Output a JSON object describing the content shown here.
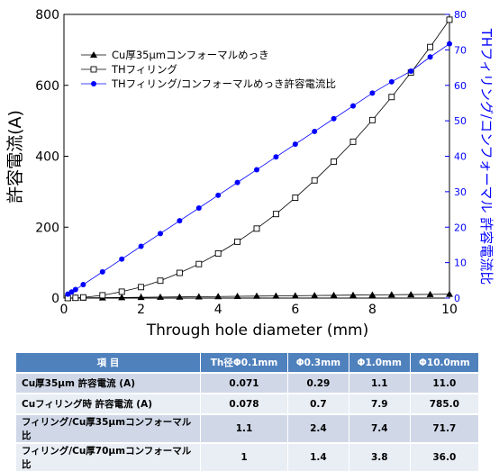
{
  "chart_data": {
    "type": "line",
    "xlabel": "Through hole diameter (mm)",
    "ylabel": "許容電流(A)",
    "y2label": "THフィリング/コンフォーマル 許容電流比",
    "xlim": [
      0,
      10
    ],
    "ylim": [
      0,
      800
    ],
    "y2lim": [
      0,
      80
    ],
    "x_ticks": [
      0,
      2,
      4,
      6,
      8,
      10
    ],
    "y_ticks": [
      0,
      200,
      400,
      600,
      800
    ],
    "y2_ticks": [
      0,
      10,
      20,
      30,
      40,
      50,
      60,
      70,
      80
    ],
    "grid": false,
    "legend_position": "top-left",
    "series": [
      {
        "name": "Cu厚35μmコンフォーマルめっき",
        "axis": "left",
        "color": "#000000",
        "marker": "triangle",
        "x": [
          0.1,
          0.3,
          0.5,
          1.0,
          1.5,
          2.0,
          2.5,
          3.0,
          3.5,
          4.0,
          4.5,
          5.0,
          5.5,
          6.0,
          6.5,
          7.0,
          7.5,
          8.0,
          8.5,
          9.0,
          9.5,
          10.0
        ],
        "y": [
          0.071,
          0.29,
          0.5,
          1.1,
          1.6,
          2.2,
          2.8,
          3.3,
          3.9,
          4.5,
          5.0,
          5.6,
          6.1,
          6.7,
          7.3,
          7.8,
          8.4,
          8.9,
          9.5,
          10.0,
          10.5,
          11.0
        ]
      },
      {
        "name": "THフィリング",
        "axis": "left",
        "color": "#000000",
        "marker": "square-open",
        "x": [
          0.1,
          0.3,
          0.5,
          1.0,
          1.5,
          2.0,
          2.5,
          3.0,
          3.5,
          4.0,
          4.5,
          5.0,
          5.5,
          6.0,
          6.5,
          7.0,
          7.5,
          8.0,
          8.5,
          9.0,
          9.5,
          10.0
        ],
        "y": [
          0.078,
          0.7,
          2,
          7.9,
          18,
          31,
          49,
          71,
          96,
          126,
          159,
          196,
          237,
          283,
          332,
          385,
          441,
          502,
          567,
          636,
          708,
          785
        ]
      },
      {
        "name": "THフィリング/コンフォーマルめっき許容電流比",
        "axis": "right",
        "color": "#0000ff",
        "marker": "circle",
        "x": [
          0.1,
          0.2,
          0.3,
          0.5,
          1.0,
          1.5,
          2.0,
          2.5,
          3.0,
          3.5,
          4.0,
          4.5,
          5.0,
          5.5,
          6.0,
          6.5,
          7.0,
          7.5,
          8.0,
          8.5,
          9.0,
          9.5,
          10.0
        ],
        "y": [
          1.1,
          1.7,
          2.4,
          3.8,
          7.4,
          11.0,
          14.6,
          18.2,
          21.8,
          25.4,
          29.0,
          32.6,
          36.2,
          39.8,
          43.4,
          47.0,
          50.6,
          54.2,
          57.8,
          61.0,
          64.0,
          68.0,
          71.7
        ]
      }
    ]
  },
  "table": {
    "headers": [
      "項 目",
      "Th径Φ0.1mm",
      "Φ0.3mm",
      "Φ1.0mm",
      "Φ10.0mm"
    ],
    "rows": [
      [
        "Cu厚35μm 許容電流 (A)",
        "0.071",
        "0.29",
        "1.1",
        "11.0"
      ],
      [
        "Cuフィリング時 許容電流 (A)",
        "0.078",
        "0.7",
        "7.9",
        "785.0"
      ],
      [
        "フィリング/Cu厚35μmコンフォーマル 比",
        "1.1",
        "2.4",
        "7.4",
        "71.7"
      ],
      [
        "フィリング/Cu厚70μmコンフォーマル 比",
        "1",
        "1.4",
        "3.8",
        "36.0"
      ]
    ]
  }
}
